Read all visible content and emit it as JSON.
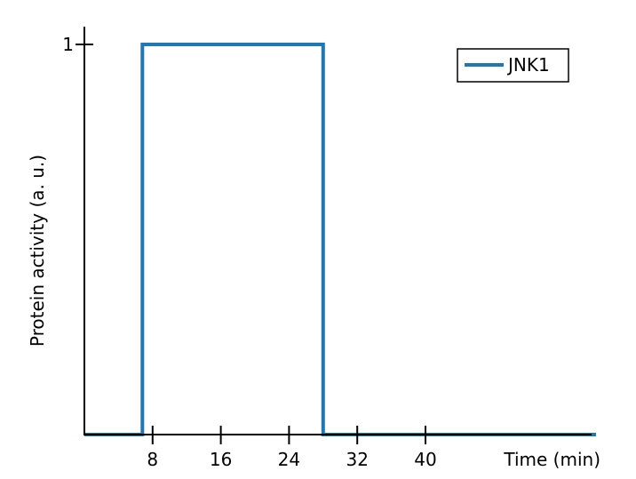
{
  "chart_data": {
    "type": "line",
    "xlabel": "Time (min)",
    "ylabel": "Protein activity (a. u.)",
    "xlim": [
      0,
      60
    ],
    "ylim": [
      0,
      1
    ],
    "x_ticks": [
      8,
      16,
      24,
      32,
      40
    ],
    "y_ticks": [
      1
    ],
    "legend_position": "top-right",
    "series": [
      {
        "name": "JNK1",
        "color": "#1f77b4",
        "x": [
          0,
          6.8,
          6.8,
          28,
          28,
          60
        ],
        "y": [
          0,
          0,
          1,
          1,
          0,
          0
        ]
      }
    ]
  }
}
